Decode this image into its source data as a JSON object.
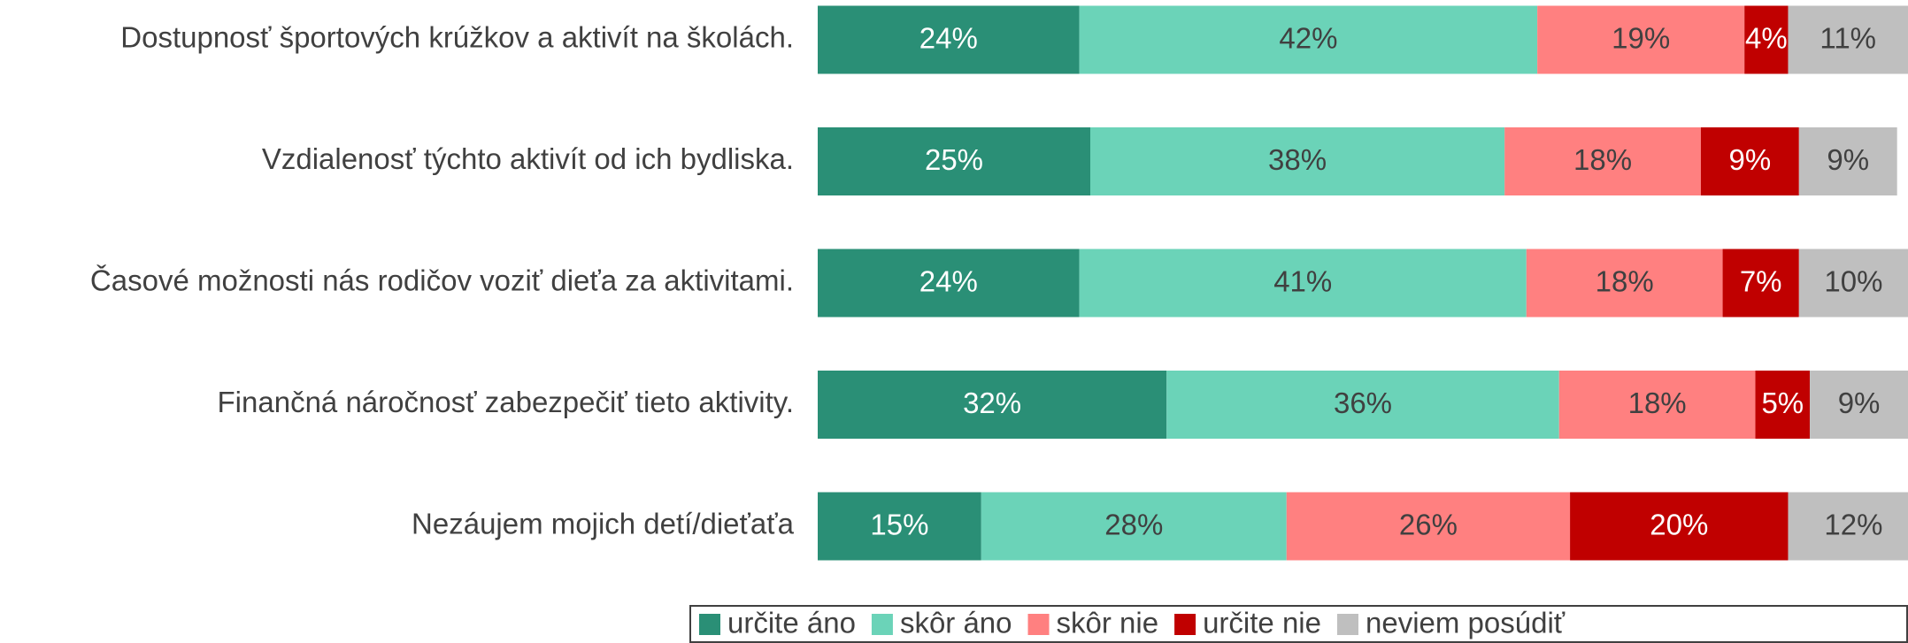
{
  "chart_data": {
    "type": "stacked-bar-horizontal",
    "categories": [
      "Dostupnosť športových krúžkov a aktivít na školách.",
      "Vzdialenosť týchto aktivít od ich bydliska.",
      "Časové možnosti nás rodičov voziť dieťa za aktivitami.",
      "Finančná náročnosť zabezpečiť tieto aktivity.",
      "Nezáujem mojich detí/dieťaťa"
    ],
    "series": [
      {
        "name": "určite áno",
        "color": "#2a8f76",
        "values": [
          24,
          25,
          24,
          32,
          15
        ],
        "value_labels": [
          "24%",
          "25%",
          "24%",
          "32%",
          "15%"
        ]
      },
      {
        "name": "skôr áno",
        "color": "#6bd3b8",
        "values": [
          42,
          38,
          41,
          36,
          28
        ],
        "value_labels": [
          "42%",
          "38%",
          "41%",
          "36%",
          "28%"
        ]
      },
      {
        "name": "skôr nie",
        "color": "#ff8080",
        "values": [
          19,
          18,
          18,
          18,
          26
        ],
        "value_labels": [
          "19%",
          "18%",
          "18%",
          "18%",
          "26%"
        ]
      },
      {
        "name": "určite nie",
        "color": "#c00000",
        "values": [
          4,
          9,
          7,
          5,
          20
        ],
        "value_labels": [
          "4%",
          "9%",
          "7%",
          "5%",
          "20%"
        ]
      },
      {
        "name": "neviem posúdiť",
        "color": "#bfbfbf",
        "values": [
          11,
          9,
          10,
          9,
          12
        ],
        "value_labels": [
          "11%",
          "9%",
          "10%",
          "9%",
          "12%"
        ]
      }
    ],
    "xlim": [
      0,
      100
    ],
    "legend": "bottom"
  }
}
